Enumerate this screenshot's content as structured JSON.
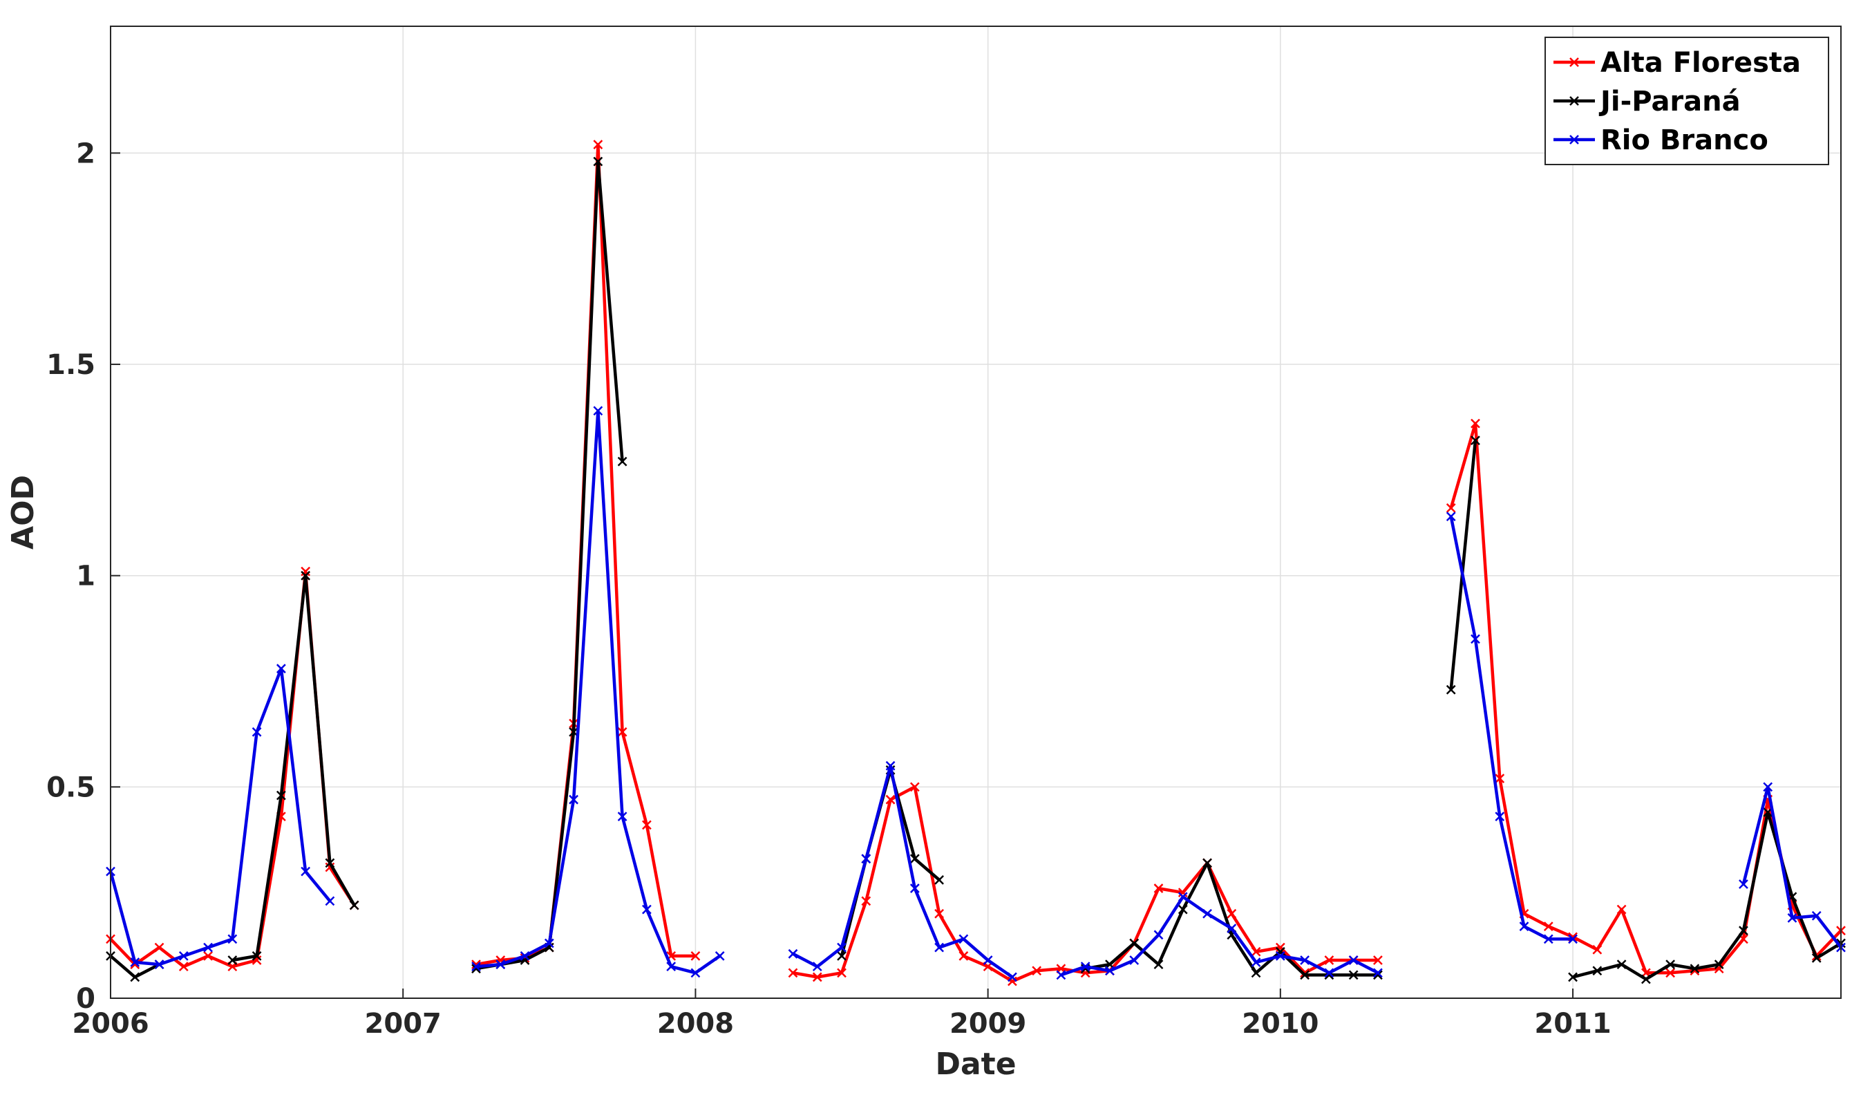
{
  "chart_data": {
    "type": "line",
    "title": "",
    "xlabel": "Date",
    "ylabel": "AOD",
    "xlim": [
      "2006-01",
      "2011-12"
    ],
    "ylim": [
      0,
      2.3
    ],
    "grid": true,
    "legend_position": "top-right",
    "x_ticks": [
      "2006",
      "2007",
      "2008",
      "2009",
      "2010",
      "2011"
    ],
    "y_ticks": [
      "0",
      "0.5",
      "1",
      "1.5",
      "2"
    ],
    "series": [
      {
        "name": "Alta Floresta",
        "color": "#ff0000",
        "points": [
          [
            "2006-01",
            0.14
          ],
          [
            "2006-02",
            0.08
          ],
          [
            "2006-03",
            0.12
          ],
          [
            "2006-04",
            0.075
          ],
          [
            "2006-05",
            0.1
          ],
          [
            "2006-06",
            0.075
          ],
          [
            "2006-07",
            0.09
          ],
          [
            "2006-08",
            0.43
          ],
          [
            "2006-09",
            1.01
          ],
          [
            "2006-10",
            0.31
          ],
          [
            "2006-11",
            0.22
          ],
          null,
          [
            "2007-04",
            0.08
          ],
          [
            "2007-05",
            0.09
          ],
          [
            "2007-06",
            0.095
          ],
          [
            "2007-07",
            0.12
          ],
          [
            "2007-08",
            0.65
          ],
          [
            "2007-09",
            2.02
          ],
          [
            "2007-10",
            0.63
          ],
          [
            "2007-11",
            0.41
          ],
          [
            "2007-12",
            0.1
          ],
          [
            "2008-01",
            0.1
          ],
          null,
          [
            "2008-05",
            0.06
          ],
          [
            "2008-06",
            0.05
          ],
          [
            "2008-07",
            0.06
          ],
          [
            "2008-08",
            0.23
          ],
          [
            "2008-09",
            0.47
          ],
          [
            "2008-10",
            0.5
          ],
          [
            "2008-11",
            0.2
          ],
          [
            "2008-12",
            0.1
          ],
          [
            "2009-01",
            0.075
          ],
          [
            "2009-02",
            0.04
          ],
          [
            "2009-03",
            0.065
          ],
          [
            "2009-04",
            0.07
          ],
          [
            "2009-05",
            0.06
          ],
          [
            "2009-06",
            0.065
          ],
          [
            "2009-07",
            0.13
          ],
          [
            "2009-08",
            0.26
          ],
          [
            "2009-09",
            0.25
          ],
          [
            "2009-10",
            0.32
          ],
          [
            "2009-11",
            0.2
          ],
          [
            "2009-12",
            0.11
          ],
          [
            "2010-01",
            0.12
          ],
          [
            "2010-02",
            0.06
          ],
          [
            "2010-03",
            0.09
          ],
          [
            "2010-04",
            0.09
          ],
          [
            "2010-05",
            0.09
          ],
          null,
          [
            "2010-08",
            1.16
          ],
          [
            "2010-09",
            1.36
          ],
          [
            "2010-10",
            0.52
          ],
          [
            "2010-11",
            0.2
          ],
          [
            "2010-12",
            0.17
          ],
          [
            "2011-01",
            0.145
          ],
          [
            "2011-02",
            0.115
          ],
          [
            "2011-03",
            0.21
          ],
          [
            "2011-04",
            0.06
          ],
          [
            "2011-05",
            0.06
          ],
          [
            "2011-06",
            0.065
          ],
          [
            "2011-07",
            0.07
          ],
          [
            "2011-08",
            0.14
          ],
          [
            "2011-09",
            0.47
          ],
          [
            "2011-10",
            0.22
          ],
          [
            "2011-11",
            0.1
          ],
          [
            "2011-12",
            0.16
          ]
        ]
      },
      {
        "name": "Ji-Paraná",
        "color": "#000000",
        "points": [
          [
            "2006-01",
            0.1
          ],
          [
            "2006-02",
            0.05
          ],
          [
            "2006-03",
            0.08
          ],
          null,
          [
            "2006-06",
            0.09
          ],
          [
            "2006-07",
            0.1
          ],
          [
            "2006-08",
            0.48
          ],
          [
            "2006-09",
            1.0
          ],
          [
            "2006-10",
            0.32
          ],
          [
            "2006-11",
            0.22
          ],
          null,
          [
            "2007-04",
            0.07
          ],
          [
            "2007-05",
            0.08
          ],
          [
            "2007-06",
            0.09
          ],
          [
            "2007-07",
            0.12
          ],
          [
            "2007-08",
            0.63
          ],
          [
            "2007-09",
            1.98
          ],
          [
            "2007-10",
            1.27
          ],
          null,
          [
            "2008-07",
            0.1
          ],
          [
            "2008-08",
            0.33
          ],
          [
            "2008-09",
            0.54
          ],
          [
            "2008-10",
            0.33
          ],
          [
            "2008-11",
            0.28
          ],
          null,
          [
            "2009-05",
            0.07
          ],
          [
            "2009-06",
            0.08
          ],
          [
            "2009-07",
            0.13
          ],
          [
            "2009-08",
            0.08
          ],
          [
            "2009-09",
            0.21
          ],
          [
            "2009-10",
            0.32
          ],
          [
            "2009-11",
            0.15
          ],
          [
            "2009-12",
            0.06
          ],
          [
            "2010-01",
            0.11
          ],
          [
            "2010-02",
            0.055
          ],
          [
            "2010-03",
            0.055
          ],
          [
            "2010-04",
            0.055
          ],
          [
            "2010-05",
            0.055
          ],
          null,
          [
            "2010-08",
            0.73
          ],
          [
            "2010-09",
            1.32
          ],
          null,
          [
            "2011-01",
            0.05
          ],
          [
            "2011-02",
            0.065
          ],
          [
            "2011-03",
            0.08
          ],
          [
            "2011-04",
            0.045
          ],
          [
            "2011-05",
            0.08
          ],
          [
            "2011-06",
            0.07
          ],
          [
            "2011-07",
            0.08
          ],
          [
            "2011-08",
            0.16
          ],
          [
            "2011-09",
            0.44
          ],
          [
            "2011-10",
            0.24
          ],
          [
            "2011-11",
            0.095
          ],
          [
            "2011-12",
            0.13
          ]
        ]
      },
      {
        "name": "Rio Branco",
        "color": "#0000e6",
        "points": [
          [
            "2006-01",
            0.3
          ],
          [
            "2006-02",
            0.085
          ],
          [
            "2006-03",
            0.08
          ],
          [
            "2006-04",
            0.1
          ],
          [
            "2006-05",
            0.12
          ],
          [
            "2006-06",
            0.14
          ],
          [
            "2006-07",
            0.63
          ],
          [
            "2006-08",
            0.78
          ],
          [
            "2006-09",
            0.3
          ],
          [
            "2006-10",
            0.23
          ],
          null,
          [
            "2007-04",
            0.075
          ],
          [
            "2007-05",
            0.08
          ],
          [
            "2007-06",
            0.1
          ],
          [
            "2007-07",
            0.13
          ],
          [
            "2007-08",
            0.47
          ],
          [
            "2007-09",
            1.39
          ],
          [
            "2007-10",
            0.43
          ],
          [
            "2007-11",
            0.21
          ],
          [
            "2007-12",
            0.075
          ],
          [
            "2008-01",
            0.06
          ],
          [
            "2008-02",
            0.1
          ],
          null,
          [
            "2008-05",
            0.105
          ],
          [
            "2008-06",
            0.075
          ],
          [
            "2008-07",
            0.12
          ],
          [
            "2008-08",
            0.33
          ],
          [
            "2008-09",
            0.55
          ],
          [
            "2008-10",
            0.26
          ],
          [
            "2008-11",
            0.12
          ],
          [
            "2008-12",
            0.14
          ],
          [
            "2009-01",
            0.09
          ],
          [
            "2009-02",
            0.05
          ],
          null,
          [
            "2009-04",
            0.055
          ],
          [
            "2009-05",
            0.075
          ],
          [
            "2009-06",
            0.065
          ],
          [
            "2009-07",
            0.09
          ],
          [
            "2009-08",
            0.15
          ],
          [
            "2009-09",
            0.24
          ],
          [
            "2009-10",
            0.2
          ],
          [
            "2009-11",
            0.165
          ],
          [
            "2009-12",
            0.085
          ],
          [
            "2010-01",
            0.1
          ],
          [
            "2010-02",
            0.09
          ],
          [
            "2010-03",
            0.06
          ],
          [
            "2010-04",
            0.09
          ],
          [
            "2010-05",
            0.06
          ],
          null,
          [
            "2010-08",
            1.14
          ],
          [
            "2010-09",
            0.85
          ],
          [
            "2010-10",
            0.43
          ],
          [
            "2010-11",
            0.17
          ],
          [
            "2010-12",
            0.14
          ],
          [
            "2011-01",
            0.14
          ],
          null,
          [
            "2011-08",
            0.27
          ],
          [
            "2011-09",
            0.5
          ],
          [
            "2011-10",
            0.19
          ],
          [
            "2011-11",
            0.195
          ],
          [
            "2011-12",
            0.12
          ]
        ]
      }
    ]
  }
}
